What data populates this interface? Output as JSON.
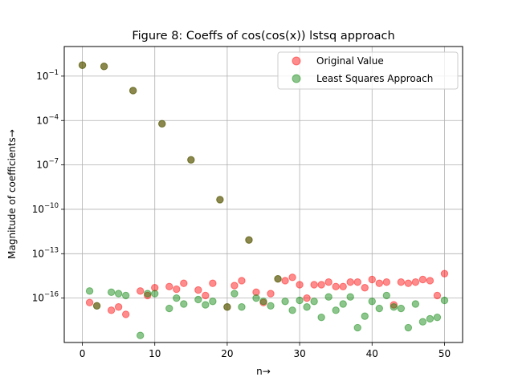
{
  "chart_data": {
    "type": "scatter",
    "title": "Figure 8: Coeffs of cos(cos(x)) lstsq approach",
    "xlabel": "n→",
    "ylabel": "Magnitude of coefficients→",
    "yscale": "log",
    "xlim": [
      -2.5,
      52.5
    ],
    "ylim": [
      1e-19,
      10
    ],
    "x_ticks": [
      0,
      10,
      20,
      30,
      40,
      50
    ],
    "x_tick_labels": [
      "0",
      "10",
      "20",
      "30",
      "40",
      "50"
    ],
    "y_ticks": [
      1e-16,
      1e-13,
      1e-10,
      1e-07,
      0.0001,
      0.1
    ],
    "y_tick_labels": [
      {
        "base": "10",
        "exp": "−16"
      },
      {
        "base": "10",
        "exp": "−13"
      },
      {
        "base": "10",
        "exp": "−10"
      },
      {
        "base": "10",
        "exp": "−7"
      },
      {
        "base": "10",
        "exp": "−4"
      },
      {
        "base": "10",
        "exp": "−1"
      }
    ],
    "grid": true,
    "legend_position": "top-right",
    "series": [
      {
        "name": "Original Value",
        "color": "#ff0000",
        "points": [
          [
            0,
            0.55
          ],
          [
            1,
            5e-17
          ],
          [
            2,
            3e-17
          ],
          [
            3,
            0.45
          ],
          [
            4,
            1.5e-17
          ],
          [
            5,
            2.5e-17
          ],
          [
            6,
            8e-18
          ],
          [
            7,
            0.0105
          ],
          [
            8,
            3e-16
          ],
          [
            9,
            1.5e-16
          ],
          [
            10,
            5e-16
          ],
          [
            11,
            6e-05
          ],
          [
            12,
            6e-16
          ],
          [
            13,
            4e-16
          ],
          [
            14,
            1e-15
          ],
          [
            15,
            2.2e-07
          ],
          [
            16,
            3.5e-16
          ],
          [
            17,
            1.5e-16
          ],
          [
            18,
            1e-15
          ],
          [
            19,
            4.5e-10
          ],
          [
            20,
            2.5e-17
          ],
          [
            21,
            7e-16
          ],
          [
            22,
            1.5e-15
          ],
          [
            23,
            8.5e-13
          ],
          [
            24,
            2.5e-16
          ],
          [
            25,
            5e-17
          ],
          [
            26,
            2e-16
          ],
          [
            27,
            2e-15
          ],
          [
            28,
            1.5e-15
          ],
          [
            29,
            2.5e-15
          ],
          [
            30,
            8e-16
          ],
          [
            31,
            1e-16
          ],
          [
            32,
            8e-16
          ],
          [
            33,
            8e-16
          ],
          [
            34,
            1.2e-15
          ],
          [
            35,
            6e-16
          ],
          [
            36,
            6e-16
          ],
          [
            37,
            1.2e-15
          ],
          [
            38,
            1.2e-15
          ],
          [
            39,
            5e-16
          ],
          [
            40,
            1.8e-15
          ],
          [
            41,
            1e-15
          ],
          [
            42,
            1.2e-15
          ],
          [
            43,
            3.5e-17
          ],
          [
            44,
            1.2e-15
          ],
          [
            45,
            1e-15
          ],
          [
            46,
            1.2e-15
          ],
          [
            47,
            1.8e-15
          ],
          [
            48,
            1.5e-15
          ],
          [
            49,
            1.5e-16
          ],
          [
            50,
            4.5e-15
          ]
        ]
      },
      {
        "name": "Least Squares Approach",
        "color": "#008000",
        "points": [
          [
            0,
            0.55
          ],
          [
            1,
            3e-16
          ],
          [
            2,
            3e-17
          ],
          [
            3,
            0.45
          ],
          [
            4,
            2.5e-16
          ],
          [
            5,
            2e-16
          ],
          [
            6,
            1.5e-16
          ],
          [
            7,
            0.0105
          ],
          [
            8,
            3e-19
          ],
          [
            9,
            2e-16
          ],
          [
            10,
            2e-16
          ],
          [
            11,
            6e-05
          ],
          [
            12,
            2e-17
          ],
          [
            13,
            1e-16
          ],
          [
            14,
            4e-17
          ],
          [
            15,
            2.2e-07
          ],
          [
            16,
            8e-17
          ],
          [
            17,
            3.5e-17
          ],
          [
            18,
            6e-17
          ],
          [
            19,
            4.5e-10
          ],
          [
            20,
            2.5e-17
          ],
          [
            21,
            2e-16
          ],
          [
            22,
            2.5e-17
          ],
          [
            23,
            8.5e-13
          ],
          [
            24,
            1e-16
          ],
          [
            25,
            6e-17
          ],
          [
            26,
            3e-17
          ],
          [
            27,
            2e-15
          ],
          [
            28,
            6e-17
          ],
          [
            29,
            1.5e-17
          ],
          [
            30,
            7e-17
          ],
          [
            31,
            2.5e-17
          ],
          [
            32,
            6e-17
          ],
          [
            33,
            5e-18
          ],
          [
            34,
            1.2e-16
          ],
          [
            35,
            1.5e-17
          ],
          [
            36,
            4e-17
          ],
          [
            37,
            1.2e-16
          ],
          [
            38,
            1e-18
          ],
          [
            39,
            6e-18
          ],
          [
            40,
            6e-17
          ],
          [
            41,
            2e-17
          ],
          [
            42,
            1.5e-16
          ],
          [
            43,
            2.5e-17
          ],
          [
            44,
            2e-17
          ],
          [
            45,
            1e-18
          ],
          [
            46,
            4e-17
          ],
          [
            47,
            2.5e-18
          ],
          [
            48,
            4e-18
          ],
          [
            49,
            5e-18
          ],
          [
            50,
            7e-17
          ]
        ]
      }
    ]
  }
}
